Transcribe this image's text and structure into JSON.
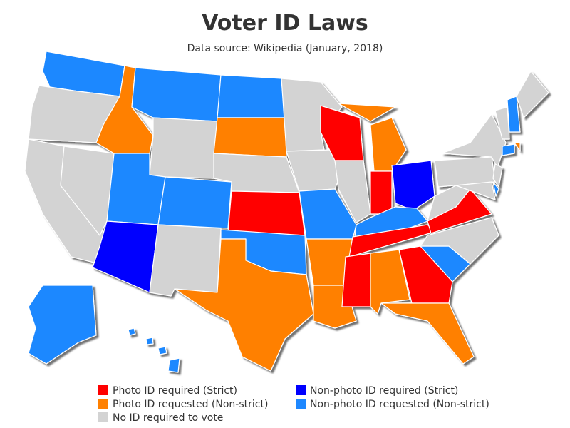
{
  "title": "Voter ID Laws",
  "subtitle": "Data source: Wikipedia (January, 2018)",
  "legend": {
    "items": [
      {
        "label": "Photo ID required (Strict)",
        "color": "#ff0000"
      },
      {
        "label": "Photo ID requested (Non-strict)",
        "color": "#ff8000"
      },
      {
        "label": "No ID required to vote",
        "color": "#d3d3d3"
      },
      {
        "label": "Non-photo ID required (Strict)",
        "color": "#0000ff"
      },
      {
        "label": "Non-photo ID requested (Non-strict)",
        "color": "#1e88ff"
      }
    ]
  },
  "regions": [
    4,
    2,
    2,
    2,
    1,
    4,
    2,
    4,
    3,
    4,
    2,
    4,
    1,
    2,
    0,
    4,
    1,
    2,
    2,
    4,
    1,
    1,
    0,
    2,
    1,
    1,
    0,
    3,
    4,
    0,
    0,
    1,
    0,
    1,
    4,
    2,
    0,
    2,
    2,
    2,
    2,
    4,
    2,
    4,
    2,
    4,
    1,
    2,
    4,
    4,
    4,
    4,
    4
  ]
}
